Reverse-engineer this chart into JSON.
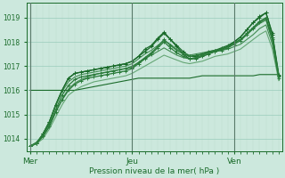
{
  "xlabel": "Pression niveau de la mer( hPa )",
  "bg_color": "#cce8dd",
  "grid_color_major": "#99ccbb",
  "grid_color_minor": "#bbddcc",
  "line_color": "#1a6b2a",
  "ylim": [
    1013.5,
    1019.6
  ],
  "yticks": [
    1014,
    1015,
    1016,
    1017,
    1018,
    1019
  ],
  "xtick_labels": [
    "Mer",
    "Jeu",
    "Ven"
  ],
  "xtick_positions": [
    0,
    16,
    32
  ],
  "n_points": 40,
  "series": [
    {
      "y": [
        1013.7,
        1013.8,
        1014.2,
        1014.7,
        1015.4,
        1016.0,
        1016.5,
        1016.7,
        1016.75,
        1016.8,
        1016.85,
        1016.9,
        1016.95,
        1017.0,
        1017.05,
        1017.1,
        1017.2,
        1017.4,
        1017.6,
        1017.8,
        1018.1,
        1018.35,
        1018.1,
        1017.8,
        1017.5,
        1017.3,
        1017.3,
        1017.4,
        1017.5,
        1017.6,
        1017.7,
        1017.8,
        1018.0,
        1018.2,
        1018.5,
        1018.8,
        1019.05,
        1019.2,
        1018.3,
        1016.6
      ],
      "marker": "+",
      "markersize": 3,
      "linewidth": 0.9,
      "alpha": 1.0,
      "color": "#1a6b2a"
    },
    {
      "y": [
        1013.7,
        1013.8,
        1014.2,
        1014.7,
        1015.4,
        1016.0,
        1016.5,
        1016.7,
        1016.75,
        1016.8,
        1016.85,
        1016.9,
        1016.95,
        1017.0,
        1017.05,
        1017.1,
        1017.2,
        1017.4,
        1017.7,
        1017.85,
        1018.15,
        1018.4,
        1018.1,
        1017.85,
        1017.6,
        1017.4,
        1017.4,
        1017.5,
        1017.6,
        1017.65,
        1017.75,
        1017.85,
        1018.0,
        1018.2,
        1018.5,
        1018.8,
        1019.0,
        1019.2,
        1018.35,
        1016.65
      ],
      "marker": "+",
      "markersize": 3,
      "linewidth": 0.9,
      "alpha": 1.0,
      "color": "#1a6b2a"
    },
    {
      "y": [
        1013.7,
        1013.8,
        1014.1,
        1014.5,
        1015.1,
        1015.6,
        1016.0,
        1016.25,
        1016.4,
        1016.5,
        1016.55,
        1016.6,
        1016.65,
        1016.7,
        1016.75,
        1016.8,
        1016.9,
        1017.1,
        1017.3,
        1017.5,
        1017.75,
        1018.0,
        1017.75,
        1017.55,
        1017.4,
        1017.3,
        1017.35,
        1017.45,
        1017.55,
        1017.6,
        1017.65,
        1017.75,
        1017.9,
        1018.05,
        1018.3,
        1018.55,
        1018.8,
        1018.95,
        1018.1,
        1016.5
      ],
      "marker": "+",
      "markersize": 3,
      "linewidth": 0.9,
      "alpha": 1.0,
      "color": "#2a7b3a"
    },
    {
      "y": [
        1013.7,
        1013.85,
        1014.15,
        1014.6,
        1015.2,
        1015.8,
        1016.2,
        1016.45,
        1016.55,
        1016.6,
        1016.65,
        1016.7,
        1016.75,
        1016.8,
        1016.85,
        1016.9,
        1016.95,
        1017.15,
        1017.35,
        1017.55,
        1017.8,
        1018.1,
        1017.85,
        1017.65,
        1017.5,
        1017.4,
        1017.45,
        1017.5,
        1017.55,
        1017.65,
        1017.7,
        1017.8,
        1017.95,
        1018.1,
        1018.35,
        1018.6,
        1018.85,
        1019.0,
        1018.2,
        1016.55
      ],
      "marker": "+",
      "markersize": 3,
      "linewidth": 0.9,
      "alpha": 1.0,
      "color": "#2a7b3a"
    },
    {
      "y": [
        1016.0,
        1016.0,
        1016.0,
        1016.0,
        1016.0,
        1016.0,
        1016.0,
        1016.0,
        1016.05,
        1016.1,
        1016.15,
        1016.2,
        1016.25,
        1016.3,
        1016.35,
        1016.4,
        1016.45,
        1016.5,
        1016.5,
        1016.5,
        1016.5,
        1016.5,
        1016.5,
        1016.5,
        1016.5,
        1016.5,
        1016.55,
        1016.6,
        1016.6,
        1016.6,
        1016.6,
        1016.6,
        1016.6,
        1016.6,
        1016.6,
        1016.6,
        1016.65,
        1016.65,
        1016.65,
        1016.65
      ],
      "marker": null,
      "markersize": 0,
      "linewidth": 0.8,
      "alpha": 1.0,
      "color": "#1a6b2a"
    },
    {
      "y": [
        1013.7,
        1013.8,
        1014.1,
        1014.5,
        1015.1,
        1015.65,
        1016.05,
        1016.3,
        1016.45,
        1016.55,
        1016.65,
        1016.7,
        1016.75,
        1016.8,
        1016.85,
        1016.9,
        1017.0,
        1017.15,
        1017.3,
        1017.45,
        1017.6,
        1017.75,
        1017.6,
        1017.45,
        1017.35,
        1017.3,
        1017.35,
        1017.4,
        1017.5,
        1017.6,
        1017.65,
        1017.7,
        1017.8,
        1017.9,
        1018.1,
        1018.3,
        1018.55,
        1018.7,
        1017.9,
        1016.5
      ],
      "marker": null,
      "markersize": 0,
      "linewidth": 0.8,
      "alpha": 0.85,
      "color": "#2a7b3a"
    },
    {
      "y": [
        1013.7,
        1013.85,
        1014.2,
        1014.7,
        1015.35,
        1015.95,
        1016.35,
        1016.55,
        1016.65,
        1016.7,
        1016.75,
        1016.8,
        1016.85,
        1016.9,
        1016.95,
        1017.0,
        1017.1,
        1017.3,
        1017.5,
        1017.65,
        1017.85,
        1018.05,
        1017.9,
        1017.7,
        1017.55,
        1017.45,
        1017.5,
        1017.55,
        1017.6,
        1017.65,
        1017.7,
        1017.8,
        1017.95,
        1018.1,
        1018.3,
        1018.55,
        1018.75,
        1018.9,
        1018.05,
        1016.55
      ],
      "marker": null,
      "markersize": 0,
      "linewidth": 0.8,
      "alpha": 0.85,
      "color": "#2a7b3a"
    },
    {
      "y": [
        1013.7,
        1013.8,
        1014.0,
        1014.4,
        1014.9,
        1015.4,
        1015.8,
        1016.0,
        1016.15,
        1016.25,
        1016.35,
        1016.4,
        1016.45,
        1016.5,
        1016.55,
        1016.6,
        1016.7,
        1016.85,
        1017.0,
        1017.15,
        1017.3,
        1017.45,
        1017.35,
        1017.25,
        1017.15,
        1017.1,
        1017.15,
        1017.2,
        1017.3,
        1017.4,
        1017.45,
        1017.5,
        1017.6,
        1017.7,
        1017.9,
        1018.1,
        1018.3,
        1018.45,
        1017.7,
        1016.4
      ],
      "marker": null,
      "markersize": 0,
      "linewidth": 0.8,
      "alpha": 0.7,
      "color": "#3a8b4a"
    }
  ]
}
